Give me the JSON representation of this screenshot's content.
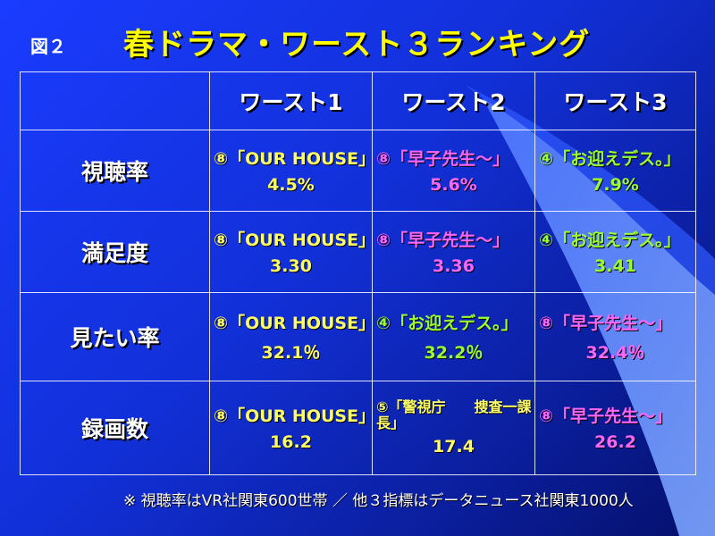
{
  "figure_label": "図２",
  "title": "春ドラマ・ワースト３ランキング",
  "colors": {
    "yellow": "#ffff66",
    "magenta": "#ff66ff",
    "green": "#99ff33"
  },
  "table": {
    "headers": [
      "ワースト1",
      "ワースト2",
      "ワースト3"
    ],
    "rows": [
      {
        "label": "視聴率",
        "cells": [
          {
            "name": "⑧「OUR HOUSE」",
            "value": "4.5%",
            "color": "#ffff66"
          },
          {
            "name": "⑧「早子先生～」",
            "value": "5.6%",
            "color": "#ff66ff"
          },
          {
            "name": "④「お迎えデス。」",
            "value": "7.9%",
            "color": "#99ff33"
          }
        ]
      },
      {
        "label": "満足度",
        "cells": [
          {
            "name": "⑧「OUR HOUSE」",
            "value": "3.30",
            "color": "#ffff66"
          },
          {
            "name": "⑧「早子先生～」",
            "value": "3.36",
            "color": "#ff66ff"
          },
          {
            "name": "④「お迎えデス。」",
            "value": "3.41",
            "color": "#99ff33"
          }
        ]
      },
      {
        "label": "見たい率",
        "cells": [
          {
            "name": "⑧「OUR HOUSE」",
            "value": "32.1％",
            "color": "#ffff66"
          },
          {
            "name": "④「お迎えデス。」",
            "value": "32.2％",
            "color": "#99ff33"
          },
          {
            "name": "⑧「早子先生～」",
            "value": "32.4％",
            "color": "#ff66ff"
          }
        ]
      },
      {
        "label": "録画数",
        "cells": [
          {
            "name": "⑧「OUR HOUSE」",
            "value": "16.2",
            "color": "#ffff66"
          },
          {
            "name": "⑤「警視庁　　捜査一課長」",
            "value": "17.4",
            "color": "#ffff66"
          },
          {
            "name": "⑧「早子先生～」",
            "value": "26.2",
            "color": "#ff66ff"
          }
        ]
      }
    ]
  },
  "footnote": "※ 視聴率はVR社関東600世帯 ／ 他３指標はデータニュース社関東1000人"
}
